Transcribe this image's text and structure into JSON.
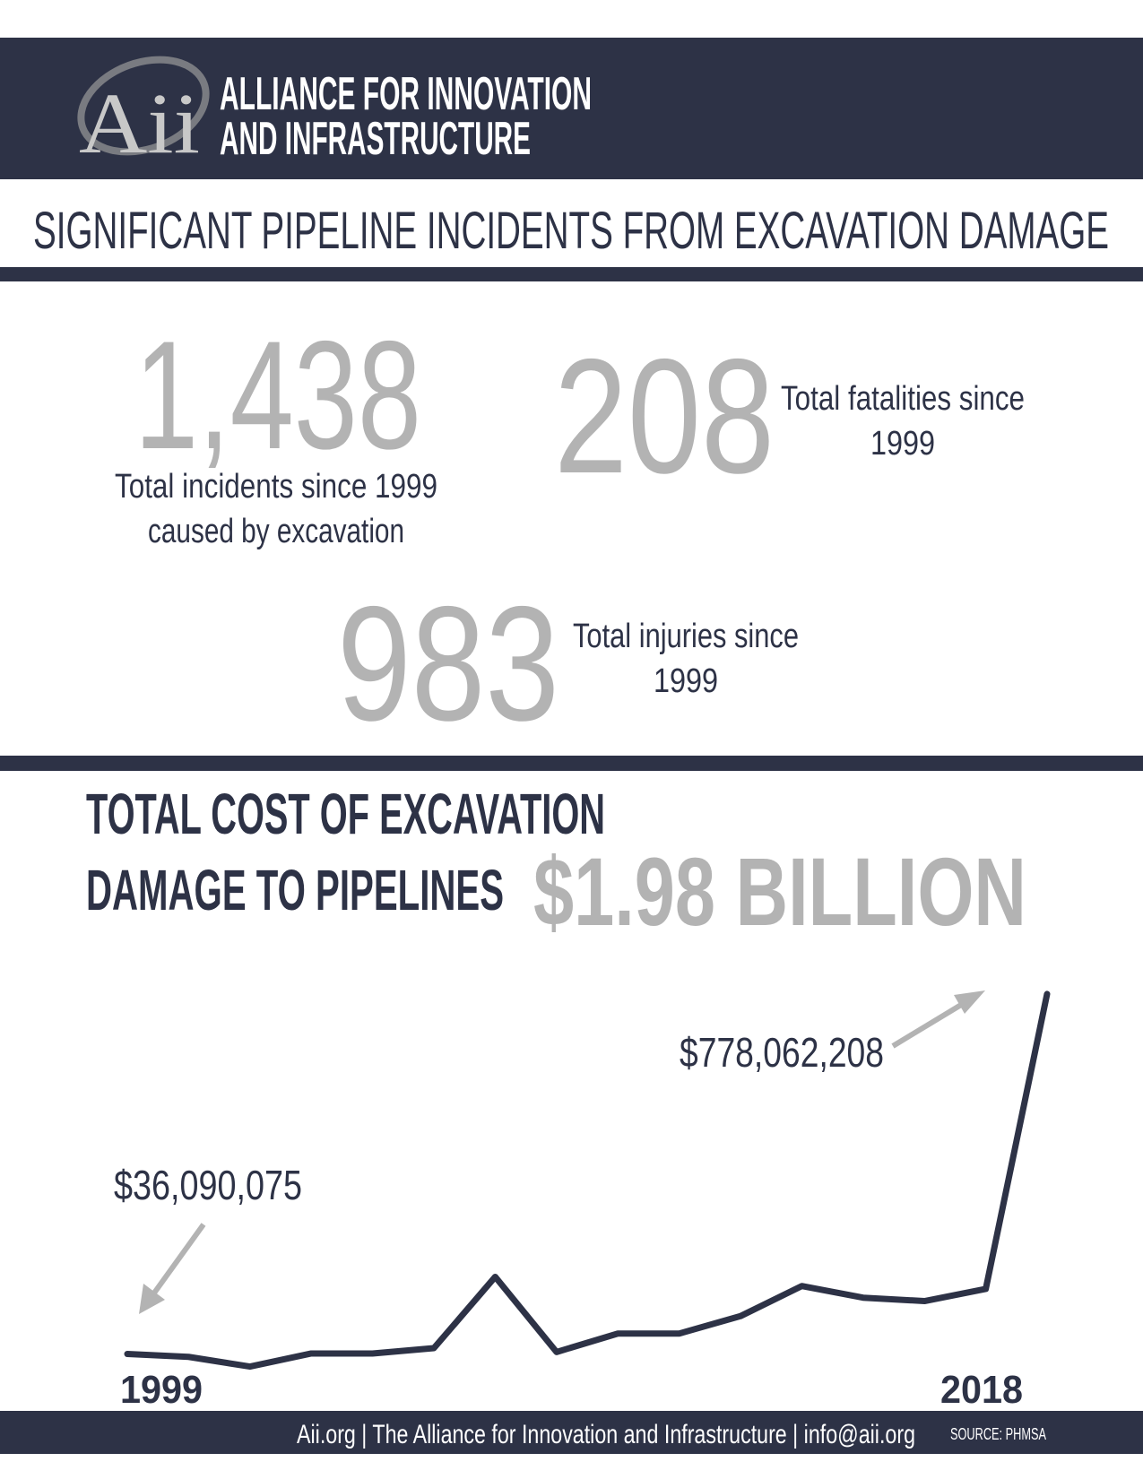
{
  "header": {
    "logo": "Aii",
    "org_name": [
      "ALLIANCE FOR INNOVATION",
      "AND INFRASTRUCTURE"
    ]
  },
  "title": "SIGNIFICANT PIPELINE INCIDENTS FROM EXCAVATION DAMAGE",
  "stats": [
    {
      "value": "1,438",
      "label": [
        "Total incidents since 1999",
        "caused by excavation"
      ]
    },
    {
      "value": "208",
      "label": [
        "Total fatalities since",
        "1999"
      ]
    },
    {
      "value": "983",
      "label": [
        "Total injuries since",
        "1999"
      ]
    }
  ],
  "chart_data": {
    "type": "line",
    "title": [
      "TOTAL COST OF EXCAVATION",
      "DAMAGE TO PIPELINES"
    ],
    "total": "$1.98 BILLION",
    "categories": [
      "1999",
      null,
      null,
      null,
      null,
      null,
      null,
      null,
      null,
      null,
      null,
      null,
      null,
      null,
      null,
      "2018"
    ],
    "values": [
      36090075,
      30000000,
      10000000,
      37000000,
      37000000,
      48000000,
      195000000,
      40000000,
      78000000,
      78000000,
      114000000,
      176000000,
      152000000,
      145000000,
      170000000,
      778062208
    ],
    "value_labels": [
      "$36,090,075",
      null,
      null,
      null,
      null,
      null,
      null,
      null,
      null,
      null,
      null,
      null,
      null,
      null,
      null,
      "$778,062,208"
    ],
    "color": "#2d3246",
    "ylim": [
      0,
      800000000
    ]
  },
  "footer": {
    "text": "Aii.org | The Alliance for Innovation and Infrastructure | info@aii.org",
    "source": "SOURCE: PHMSA"
  }
}
